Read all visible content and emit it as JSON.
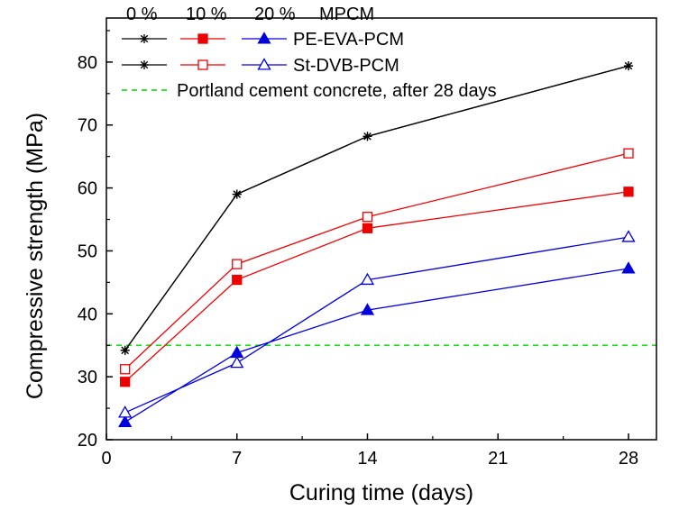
{
  "chart_data": {
    "type": "line",
    "xlabel": "Curing time (days)",
    "ylabel": "Compressive strength (MPa)",
    "xlim": [
      0,
      29.5
    ],
    "ylim": [
      20,
      87
    ],
    "xticks": [
      0,
      7,
      14,
      21,
      28
    ],
    "yticks": [
      20,
      30,
      40,
      50,
      60,
      70,
      80
    ],
    "legend_header": [
      "0 %",
      "10 %",
      "20 %",
      "MPCM"
    ],
    "legend_rows": [
      "PE-EVA-PCM",
      "St-DVB-PCM"
    ],
    "reference_line": {
      "label": "Portland cement concrete, after 28 days",
      "value": 35,
      "color": "#22dd22"
    },
    "series": [
      {
        "group": "PE-EVA-PCM",
        "content": "0 %",
        "color": "#000000",
        "marker": "star",
        "x": [
          1,
          7,
          14,
          28
        ],
        "values": [
          34.2,
          59.0,
          68.2,
          79.4
        ]
      },
      {
        "group": "St-DVB-PCM",
        "content": "0 %",
        "color": "#000000",
        "marker": "star",
        "x": [
          1,
          7,
          14,
          28
        ],
        "values": [
          34.2,
          59.0,
          68.2,
          79.4
        ]
      },
      {
        "group": "PE-EVA-PCM",
        "content": "10 %",
        "color": "#ee0000",
        "marker": "square-filled",
        "x": [
          1,
          7,
          14,
          28
        ],
        "values": [
          29.2,
          45.4,
          53.6,
          59.4
        ]
      },
      {
        "group": "St-DVB-PCM",
        "content": "10 %",
        "color": "#ee0000",
        "marker": "square-open",
        "x": [
          1,
          7,
          14,
          28
        ],
        "values": [
          31.2,
          47.9,
          55.4,
          65.5
        ]
      },
      {
        "group": "PE-EVA-PCM",
        "content": "20 %",
        "color": "#0000dd",
        "marker": "triangle-filled",
        "x": [
          1,
          7,
          14,
          28
        ],
        "values": [
          22.8,
          33.8,
          40.6,
          47.2
        ]
      },
      {
        "group": "St-DVB-PCM",
        "content": "20 %",
        "color": "#0000dd",
        "marker": "triangle-open",
        "x": [
          1,
          7,
          14,
          28
        ],
        "values": [
          24.3,
          32.2,
          45.4,
          52.2
        ]
      }
    ]
  }
}
